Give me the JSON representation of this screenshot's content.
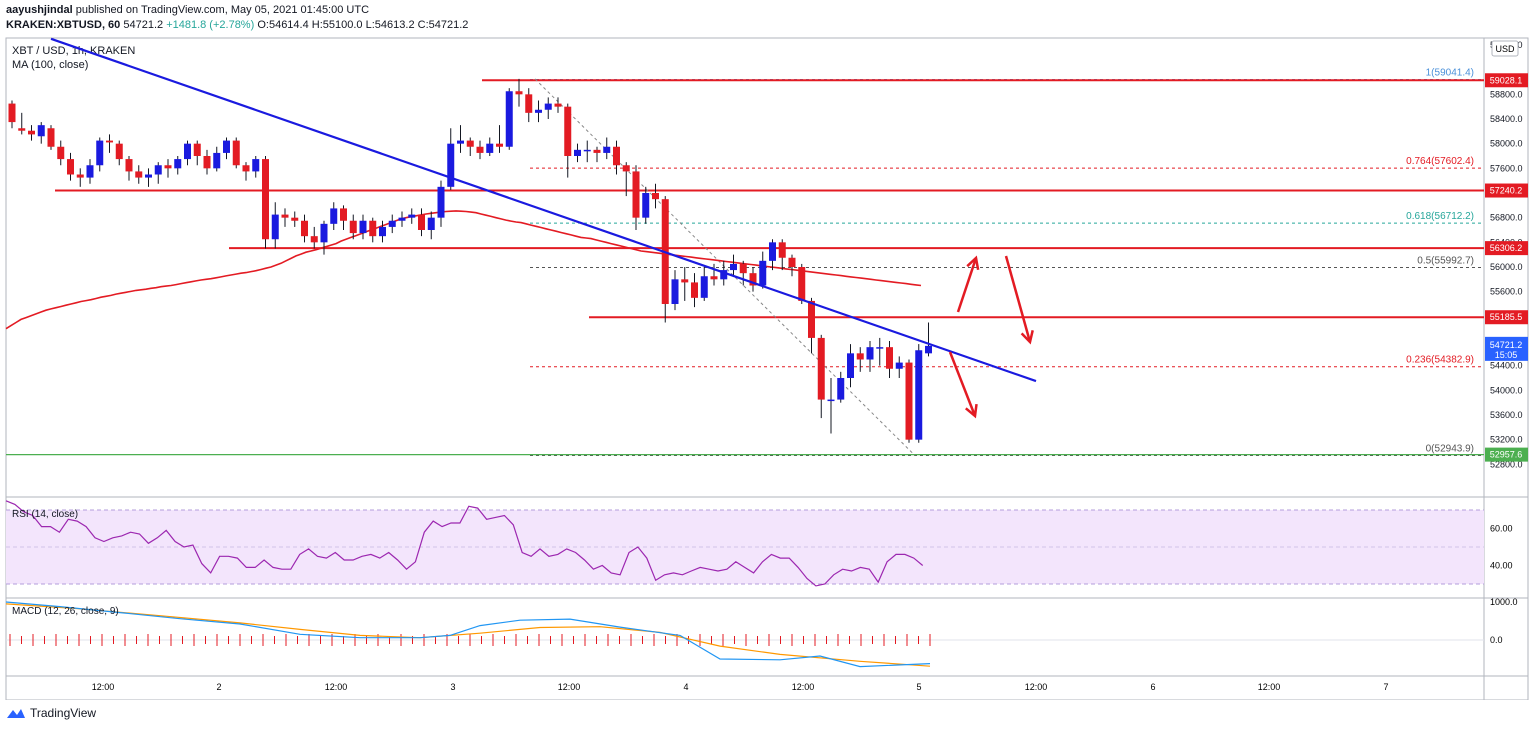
{
  "header": {
    "author": "aayushjindal",
    "published_text": "published on TradingView.com, May 05, 2021 01:45:00 UTC",
    "symbol_line": "KRAKEN:XBTUSD, 60",
    "last": "54721.2",
    "change": "+1481.8 (+2.78%)",
    "ohlc": {
      "O": "54614.4",
      "H": "55100.0",
      "L": "54613.2",
      "C": "54721.2"
    }
  },
  "main_pane": {
    "title": "XBT / USD, 1h, KRAKEN",
    "ma_label": "MA (100, close)",
    "currency_button": "USD",
    "price_ticks": [
      "59600.0",
      "58800.0",
      "58400.0",
      "58000.0",
      "57600.0",
      "56800.0",
      "56400.0",
      "56000.0",
      "55600.0",
      "55200.0",
      "54800.0",
      "54400.0",
      "54000.0",
      "53600.0",
      "53200.0",
      "52800.0"
    ],
    "price_badges": [
      {
        "value": "59028.1",
        "color": "#e31b23"
      },
      {
        "value": "57240.2",
        "color": "#e31b23"
      },
      {
        "value": "56306.2",
        "color": "#e31b23"
      },
      {
        "value": "55185.5",
        "color": "#e31b23"
      },
      {
        "value": "52957.6",
        "color": "#4caf50"
      }
    ],
    "current_price": {
      "value": "54721.2",
      "countdown": "15:05",
      "color": "#2962ff"
    },
    "fib_labels": [
      {
        "text": "1(59041.4)",
        "value": 59041.4,
        "color": "#4a90d9"
      },
      {
        "text": "0.764(57602.4)",
        "value": 57602.4,
        "color": "#e31b23"
      },
      {
        "text": "0.618(56712.2)",
        "value": 56712.2,
        "color": "#26a69a"
      },
      {
        "text": "0.5(55992.7)",
        "value": 55992.7,
        "color": "#555555"
      },
      {
        "text": "0.236(54382.9)",
        "value": 54382.9,
        "color": "#e31b23"
      },
      {
        "text": "0(52943.9)",
        "value": 52943.9,
        "color": "#555555"
      }
    ]
  },
  "rsi_pane": {
    "label": "RSI (14, close)",
    "ticks": [
      "60.00",
      "40.00"
    ],
    "band_upper": 70,
    "band_lower": 30,
    "values": [
      75,
      73,
      69,
      67,
      61,
      61,
      58,
      65,
      64,
      61,
      55,
      53,
      55,
      56,
      58,
      57,
      52,
      55,
      59,
      53,
      50,
      51,
      41,
      36,
      45,
      45,
      44,
      39,
      39,
      43,
      39,
      38,
      38,
      46,
      49,
      45,
      44,
      47,
      43,
      43,
      45,
      46,
      44,
      47,
      43,
      38,
      42,
      58,
      64,
      61,
      63,
      63,
      72,
      71,
      65,
      66,
      67,
      62,
      47,
      45,
      49,
      45,
      46,
      49,
      47,
      43,
      38,
      40,
      36,
      35,
      47,
      50,
      44,
      32,
      35,
      36,
      35,
      37,
      39,
      38,
      37,
      38,
      42,
      39,
      36,
      42,
      46,
      44,
      44,
      39,
      33,
      29,
      30,
      35,
      38,
      37,
      39,
      38,
      31,
      42,
      46,
      46,
      44,
      40
    ]
  },
  "macd_pane": {
    "label": "MACD (12, 26, close, 9)",
    "ticks": [
      "1000.0",
      "0.0"
    ]
  },
  "time_axis": {
    "labels": [
      "12:00",
      "2",
      "12:00",
      "3",
      "12:00",
      "4",
      "12:00",
      "5",
      "12:00",
      "6",
      "12:00",
      "7"
    ]
  },
  "footer": {
    "brand": "TradingView"
  },
  "colors": {
    "bull": "#1a1adf",
    "bear": "#e31b23",
    "ma": "#e31b23",
    "trendline": "#1a1adf",
    "rsi": "#9c27b0",
    "rsi_band": "#f3e5fc",
    "macd": "#2196f3",
    "signal": "#ff9800",
    "hist": "#e31b23"
  },
  "chart_data": {
    "type": "candlestick",
    "interval": "1h",
    "ylim": [
      52700,
      59850
    ],
    "series": [
      {
        "name": "XBT / USD",
        "values": [
          [
            58650,
            58350,
            58700,
            58250
          ],
          [
            58250,
            58210,
            58500,
            58150
          ],
          [
            58210,
            58150,
            58300,
            58050
          ],
          [
            58120,
            58300,
            58350,
            58000
          ],
          [
            58250,
            57950,
            58300,
            57900
          ],
          [
            57950,
            57750,
            58050,
            57650
          ],
          [
            57750,
            57500,
            57850,
            57400
          ],
          [
            57500,
            57450,
            57600,
            57300
          ],
          [
            57450,
            57650,
            57750,
            57350
          ],
          [
            57650,
            58050,
            58100,
            57550
          ],
          [
            58050,
            58020,
            58150,
            57850
          ],
          [
            58000,
            57750,
            58050,
            57650
          ],
          [
            57750,
            57550,
            57800,
            57400
          ],
          [
            57550,
            57450,
            57650,
            57350
          ],
          [
            57450,
            57500,
            57600,
            57300
          ],
          [
            57500,
            57650,
            57700,
            57350
          ],
          [
            57650,
            57600,
            57750,
            57450
          ],
          [
            57600,
            57750,
            57800,
            57500
          ],
          [
            57750,
            58000,
            58050,
            57650
          ],
          [
            58000,
            57800,
            58050,
            57650
          ],
          [
            57800,
            57600,
            57900,
            57500
          ],
          [
            57600,
            57850,
            57950,
            57550
          ],
          [
            57850,
            58050,
            58100,
            57750
          ],
          [
            58050,
            57650,
            58100,
            57600
          ],
          [
            57650,
            57550,
            57700,
            57400
          ],
          [
            57550,
            57750,
            57800,
            57450
          ],
          [
            57750,
            56450,
            57800,
            56300
          ],
          [
            56450,
            56850,
            57050,
            56300
          ],
          [
            56850,
            56800,
            56950,
            56650
          ],
          [
            56800,
            56750,
            56900,
            56650
          ],
          [
            56750,
            56500,
            56850,
            56400
          ],
          [
            56500,
            56400,
            56650,
            56300
          ],
          [
            56400,
            56700,
            56750,
            56200
          ],
          [
            56700,
            56950,
            57050,
            56600
          ],
          [
            56950,
            56750,
            57000,
            56600
          ],
          [
            56750,
            56550,
            56850,
            56450
          ],
          [
            56550,
            56750,
            56850,
            56450
          ],
          [
            56750,
            56500,
            56800,
            56400
          ],
          [
            56500,
            56650,
            56750,
            56400
          ],
          [
            56650,
            56750,
            56850,
            56550
          ],
          [
            56750,
            56800,
            56900,
            56650
          ],
          [
            56800,
            56850,
            56950,
            56700
          ],
          [
            56850,
            56600,
            56950,
            56500
          ],
          [
            56600,
            56800,
            56900,
            56450
          ],
          [
            56800,
            57300,
            57400,
            56650
          ],
          [
            57300,
            58000,
            58250,
            57250
          ],
          [
            58000,
            58050,
            58300,
            57850
          ],
          [
            58050,
            57950,
            58100,
            57800
          ],
          [
            57950,
            57850,
            58050,
            57750
          ],
          [
            57850,
            58000,
            58100,
            57800
          ],
          [
            58000,
            57950,
            58300,
            57850
          ],
          [
            57950,
            58850,
            58900,
            57900
          ],
          [
            58850,
            58800,
            59050,
            58600
          ],
          [
            58800,
            58500,
            58900,
            58350
          ],
          [
            58500,
            58550,
            58700,
            58350
          ],
          [
            58550,
            58650,
            58750,
            58400
          ],
          [
            58650,
            58600,
            58750,
            58500
          ],
          [
            58600,
            57800,
            58650,
            57450
          ],
          [
            57800,
            57900,
            58000,
            57700
          ],
          [
            57900,
            57900,
            58050,
            57700
          ],
          [
            57900,
            57850,
            57950,
            57700
          ],
          [
            57850,
            57950,
            58100,
            57750
          ],
          [
            57950,
            57650,
            58050,
            57500
          ],
          [
            57650,
            57550,
            57700,
            57150
          ],
          [
            57550,
            56800,
            57650,
            56600
          ],
          [
            56800,
            57200,
            57300,
            56700
          ],
          [
            57200,
            57100,
            57350,
            56950
          ],
          [
            57100,
            55400,
            57150,
            55100
          ],
          [
            55400,
            55800,
            55950,
            55300
          ],
          [
            55800,
            55750,
            56000,
            55450
          ],
          [
            55750,
            55500,
            55900,
            55350
          ],
          [
            55500,
            55850,
            56000,
            55450
          ],
          [
            55850,
            55800,
            56050,
            55700
          ],
          [
            55800,
            55950,
            56100,
            55700
          ],
          [
            55950,
            56050,
            56200,
            55850
          ],
          [
            56050,
            55900,
            56100,
            55700
          ],
          [
            55900,
            55700,
            56000,
            55600
          ],
          [
            55700,
            56100,
            56250,
            55650
          ],
          [
            56100,
            56400,
            56450,
            55950
          ],
          [
            56400,
            56150,
            56450,
            55950
          ],
          [
            56150,
            56000,
            56200,
            55850
          ],
          [
            56000,
            55450,
            56050,
            55400
          ],
          [
            55450,
            54850,
            55500,
            54600
          ],
          [
            54850,
            53850,
            54900,
            53550
          ],
          [
            53850,
            53850,
            54200,
            53300
          ],
          [
            53850,
            54200,
            54300,
            53800
          ],
          [
            54200,
            54600,
            54750,
            54050
          ],
          [
            54600,
            54500,
            54700,
            54300
          ],
          [
            54500,
            54700,
            54800,
            54300
          ],
          [
            54700,
            54700,
            54850,
            54400
          ],
          [
            54700,
            54350,
            54800,
            54200
          ],
          [
            54350,
            54450,
            54550,
            54200
          ],
          [
            54450,
            53200,
            54500,
            53150
          ],
          [
            53200,
            54650,
            54750,
            53150
          ],
          [
            54600,
            54721.2,
            55100,
            54550
          ]
        ]
      }
    ],
    "ma100": [
      55000,
      55050,
      55100,
      55150,
      55180,
      55210,
      55240,
      55270,
      55300,
      55320,
      55340,
      55360,
      55380,
      55400,
      55420,
      55440,
      55455,
      55470,
      55490,
      55510,
      55525,
      55540,
      55560,
      55575,
      55590,
      55605,
      55620,
      55630,
      55640,
      55655,
      55665,
      55680,
      55690,
      55700,
      55715,
      55730,
      55745,
      55760,
      55775,
      55790,
      55800,
      55810,
      55825,
      55840,
      55855,
      55870,
      55885,
      55900,
      55910,
      55925,
      55940,
      55960,
      55980,
      56000,
      56030,
      56060,
      56100,
      56140,
      56180,
      56210,
      56240,
      56260,
      56280,
      56305,
      56330,
      56355,
      56380,
      56420,
      56450,
      56480,
      56510,
      56540,
      56570,
      56600,
      56630,
      56660,
      56690,
      56720,
      56750,
      56780,
      56800,
      56815,
      56830,
      56845,
      56860,
      56870,
      56880,
      56890,
      56900,
      56905,
      56910,
      56905,
      56900,
      56890,
      56880,
      56860,
      56840,
      56820,
      56800,
      56780,
      56760,
      56745,
      56730,
      56720,
      56700,
      56680,
      56660,
      56640,
      56620,
      56600,
      56580,
      56560,
      56540,
      56520,
      56500,
      56480,
      56470,
      56460,
      56440,
      56420,
      56400,
      56380,
      56360,
      56340,
      56320,
      56300,
      56280,
      56260,
      56250,
      56240,
      56230,
      56220,
      56210,
      56200,
      56190,
      56180,
      56170,
      56160,
      56150,
      56140,
      56130,
      56120,
      56110,
      56100,
      56090,
      56080,
      56070,
      56060,
      56050,
      56040,
      56030,
      56020,
      56010,
      56000,
      55990,
      55980,
      55970,
      55960,
      55950,
      55940,
      55930,
      55920,
      55910,
      55900,
      55890,
      55880,
      55870,
      55860,
      55850,
      55840,
      55830,
      55820,
      55810,
      55800,
      55790,
      55780,
      55770,
      55760,
      55750,
      55740,
      55730,
      55720,
      55710,
      55700
    ],
    "horizontal_levels": [
      59028.1,
      57240.2,
      56306.2,
      55185.5,
      52957.6
    ],
    "fib_levels": [
      59041.4,
      57602.4,
      56712.2,
      55992.7,
      54382.9,
      52943.9
    ],
    "trendline": [
      [
        59700,
        51
      ],
      [
        54150,
        1036
      ]
    ]
  }
}
